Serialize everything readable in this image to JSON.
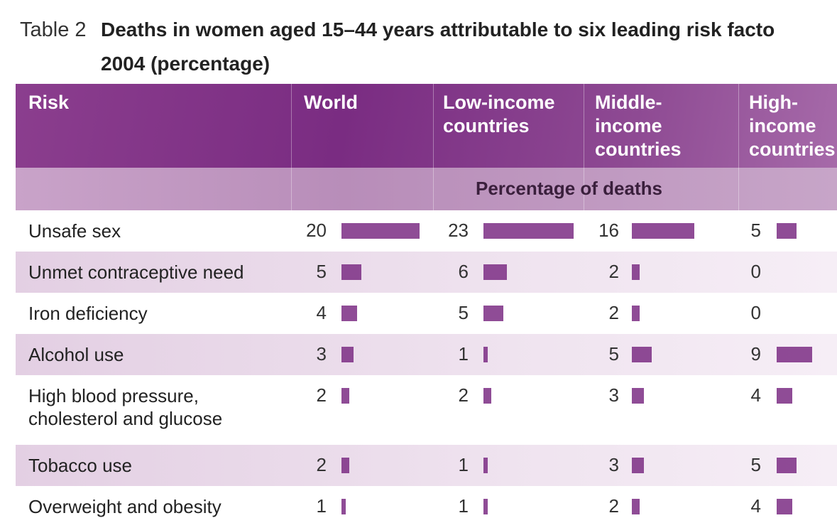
{
  "title_label": "Table 2",
  "title_lines": [
    "Deaths in women aged 15–44 years attributable to six leading risk facto",
    "2004 (percentage)"
  ],
  "table": {
    "headers": [
      [
        "Risk"
      ],
      [
        "World"
      ],
      [
        "Low-income",
        "countries"
      ],
      [
        "Middle-",
        "income",
        "countries"
      ],
      [
        "High-",
        "income",
        "countries"
      ]
    ],
    "unit_header": "Percentage of deaths",
    "rows": [
      {
        "risk": [
          "Unsafe sex"
        ],
        "values": [
          20,
          23,
          16,
          5
        ]
      },
      {
        "risk": [
          "Unmet contraceptive need"
        ],
        "values": [
          5,
          6,
          2,
          0
        ]
      },
      {
        "risk": [
          "Iron deficiency"
        ],
        "values": [
          4,
          5,
          2,
          0
        ]
      },
      {
        "risk": [
          "Alcohol use"
        ],
        "values": [
          3,
          1,
          5,
          9
        ]
      },
      {
        "risk": [
          "High blood pressure,",
          "cholesterol and glucose"
        ],
        "values": [
          2,
          2,
          3,
          4
        ]
      },
      {
        "risk": [
          "Tobacco use"
        ],
        "values": [
          2,
          1,
          3,
          5
        ]
      },
      {
        "risk": [
          "Overweight and obesity"
        ],
        "values": [
          1,
          1,
          2,
          4
        ]
      }
    ]
  }
}
